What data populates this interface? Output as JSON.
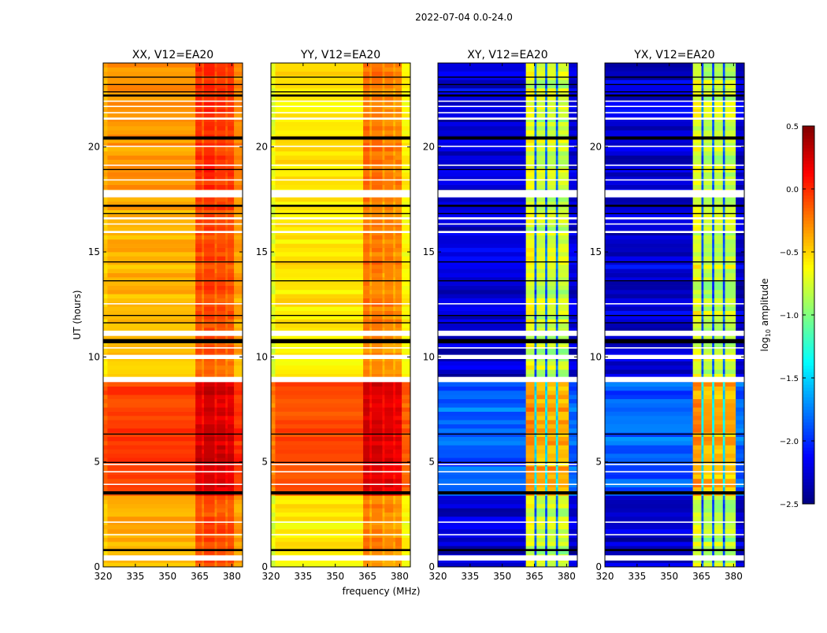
{
  "chart_data": {
    "type": "heatmap",
    "title": "2022-07-04 0.0-24.0",
    "xlabel": "frequency (MHz)",
    "ylabel": "UT (hours)",
    "xlim": [
      320,
      385
    ],
    "ylim": [
      0,
      24
    ],
    "xticks": [
      320,
      335,
      350,
      365,
      380
    ],
    "yticks": [
      0,
      5,
      10,
      15,
      20
    ],
    "colorbar": {
      "colormap": "jet",
      "vmin": -2.5,
      "vmax": 0.5,
      "ticks": [
        "0.5",
        "0.0",
        "−0.5",
        "−1.0",
        "−1.5",
        "−2.0",
        "−2.5"
      ],
      "tick_values": [
        0.5,
        0.0,
        -0.5,
        -1.0,
        -1.5,
        -2.0,
        -2.5
      ],
      "label_prefix": "log",
      "label_sub": "10",
      "label_suffix": "amplitude"
    },
    "flagged_white_hours": [
      [
        0.3,
        0.55
      ],
      [
        1.5,
        1.56
      ],
      [
        2.1,
        2.16
      ],
      [
        3.9,
        3.96
      ],
      [
        4.5,
        4.56
      ],
      [
        4.85,
        4.91
      ],
      [
        8.8,
        9.05
      ],
      [
        9.9,
        10.1
      ],
      [
        10.4,
        10.46
      ],
      [
        11.0,
        11.25
      ],
      [
        12.5,
        12.56
      ],
      [
        15.9,
        16.0
      ],
      [
        16.3,
        16.36
      ],
      [
        16.55,
        16.65
      ],
      [
        17.6,
        17.95
      ],
      [
        18.4,
        18.46
      ],
      [
        19.1,
        19.16
      ],
      [
        20.0,
        20.06
      ],
      [
        21.3,
        21.4
      ],
      [
        21.6,
        21.66
      ],
      [
        21.9,
        21.96
      ],
      [
        22.15,
        22.21
      ]
    ],
    "flagged_black_hours": [
      [
        0.75,
        0.85
      ],
      [
        3.45,
        3.6
      ],
      [
        4.95,
        5.0
      ],
      [
        6.3,
        6.35
      ],
      [
        10.65,
        10.85
      ],
      [
        11.6,
        11.65
      ],
      [
        11.95,
        12.0
      ],
      [
        13.6,
        13.65
      ],
      [
        14.5,
        14.55
      ],
      [
        16.8,
        16.85
      ],
      [
        17.15,
        17.25
      ],
      [
        18.9,
        18.95
      ],
      [
        20.35,
        20.5
      ],
      [
        22.4,
        22.5
      ],
      [
        22.6,
        22.65
      ],
      [
        22.95,
        23.0
      ],
      [
        23.3,
        23.35
      ]
    ],
    "panels": [
      {
        "title": "XX, V12=EA20",
        "time_base": [
          {
            "from": 0,
            "to": 3.5,
            "value": -0.4
          },
          {
            "from": 3.5,
            "to": 9,
            "value": -0.05
          },
          {
            "from": 9,
            "to": 10.8,
            "value": -0.45
          },
          {
            "from": 10.8,
            "to": 17,
            "value": -0.4
          },
          {
            "from": 17,
            "to": 24,
            "value": -0.33
          }
        ],
        "freq_offset": [
          {
            "from": 320,
            "to": 322,
            "value": -0.08
          },
          {
            "from": 322,
            "to": 363,
            "value": 0
          },
          {
            "from": 363,
            "to": 366,
            "value": 0.3
          },
          {
            "from": 366,
            "to": 367,
            "value": 0.18
          },
          {
            "from": 367,
            "to": 372,
            "value": 0.33
          },
          {
            "from": 372,
            "to": 373,
            "value": 0.2
          },
          {
            "from": 373,
            "to": 377,
            "value": 0.3
          },
          {
            "from": 377,
            "to": 378,
            "value": 0.2
          },
          {
            "from": 378,
            "to": 381,
            "value": 0.28
          },
          {
            "from": 381,
            "to": 385,
            "value": 0.05
          }
        ]
      },
      {
        "title": "YY, V12=EA20",
        "time_base": [
          {
            "from": 0,
            "to": 3.5,
            "value": -0.58
          },
          {
            "from": 3.5,
            "to": 9,
            "value": -0.1
          },
          {
            "from": 9,
            "to": 10.8,
            "value": -0.6
          },
          {
            "from": 10.8,
            "to": 24,
            "value": -0.55
          }
        ],
        "freq_offset": [
          {
            "from": 320,
            "to": 322,
            "value": -0.15
          },
          {
            "from": 322,
            "to": 363,
            "value": 0
          },
          {
            "from": 363,
            "to": 366,
            "value": 0.35
          },
          {
            "from": 366,
            "to": 367,
            "value": 0.22
          },
          {
            "from": 367,
            "to": 372,
            "value": 0.33
          },
          {
            "from": 372,
            "to": 373,
            "value": 0.2
          },
          {
            "from": 373,
            "to": 377,
            "value": 0.3
          },
          {
            "from": 377,
            "to": 378,
            "value": 0.2
          },
          {
            "from": 378,
            "to": 381,
            "value": 0.28
          },
          {
            "from": 381,
            "to": 385,
            "value": -0.05
          }
        ]
      },
      {
        "title": "XY, V12=EA20",
        "time_base": [
          {
            "from": 0,
            "to": 3.5,
            "value": -2.3
          },
          {
            "from": 3.5,
            "to": 9,
            "value": -1.85
          },
          {
            "from": 9,
            "to": 24,
            "value": -2.25
          }
        ],
        "freq_offset": [
          {
            "from": 320,
            "to": 361,
            "value": 0
          },
          {
            "from": 361,
            "to": 365,
            "value": 1.55
          },
          {
            "from": 365,
            "to": 366,
            "value": 0.4
          },
          {
            "from": 366,
            "to": 370,
            "value": 1.45
          },
          {
            "from": 370,
            "to": 371,
            "value": 0.4
          },
          {
            "from": 371,
            "to": 375,
            "value": 1.45
          },
          {
            "from": 375,
            "to": 376,
            "value": 0.4
          },
          {
            "from": 376,
            "to": 381,
            "value": 1.45
          },
          {
            "from": 381,
            "to": 385,
            "value": 0
          }
        ]
      },
      {
        "title": "YX, V12=EA20",
        "time_base": [
          {
            "from": 0,
            "to": 3.5,
            "value": -2.3
          },
          {
            "from": 3.5,
            "to": 9,
            "value": -1.85
          },
          {
            "from": 9,
            "to": 24,
            "value": -2.25
          }
        ],
        "freq_offset": [
          {
            "from": 320,
            "to": 361,
            "value": 0
          },
          {
            "from": 361,
            "to": 365,
            "value": 1.55
          },
          {
            "from": 365,
            "to": 366,
            "value": 0.4
          },
          {
            "from": 366,
            "to": 370,
            "value": 1.45
          },
          {
            "from": 370,
            "to": 371,
            "value": 0.4
          },
          {
            "from": 371,
            "to": 375,
            "value": 1.45
          },
          {
            "from": 375,
            "to": 376,
            "value": 0.4
          },
          {
            "from": 376,
            "to": 381,
            "value": 1.45
          },
          {
            "from": 381,
            "to": 385,
            "value": 0
          }
        ]
      }
    ]
  }
}
